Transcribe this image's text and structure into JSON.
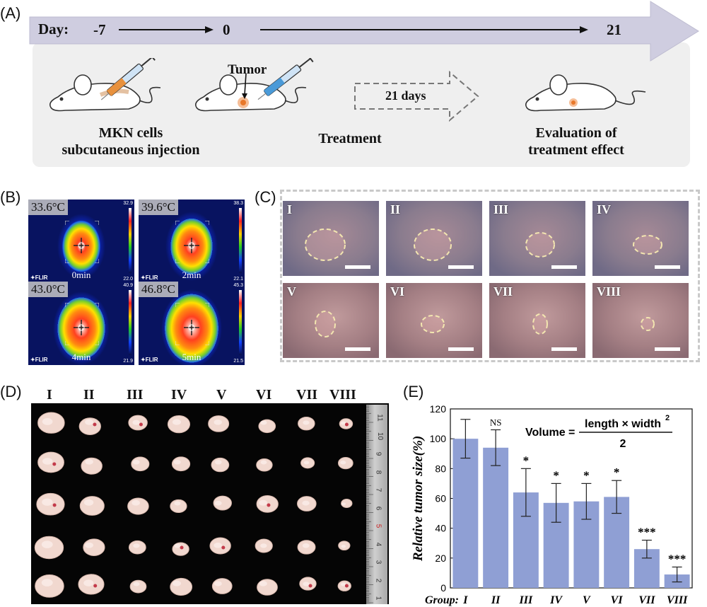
{
  "panel_labels": {
    "a": "(A)",
    "b": "(B)",
    "c": "(C)",
    "d": "(D)",
    "e": "(E)"
  },
  "timeline": {
    "day_label": "Day:",
    "day_start": "-7",
    "day_zero": "0",
    "day_end": "21",
    "tumor_label": "Tumor",
    "interval_label": "21 days",
    "step1_line1": "MKN cells",
    "step1_line2": "subcutaneous injection",
    "step2": "Treatment",
    "step3_line1": "Evaluation of",
    "step3_line2": "treatment effect"
  },
  "thermal_images": [
    {
      "temp": "33.6°C",
      "time": "0min",
      "scale_max": "32.9",
      "scale_min": "22.0"
    },
    {
      "temp": "39.6°C",
      "time": "2min",
      "scale_max": "38.3",
      "scale_min": "22.1"
    },
    {
      "temp": "43.0°C",
      "time": "4min",
      "scale_max": "40.9",
      "scale_min": "21.9"
    },
    {
      "temp": "46.8°C",
      "time": "5min",
      "scale_max": "45.3",
      "scale_min": "21.5"
    }
  ],
  "flir_label": "FLIR",
  "groups": [
    "I",
    "II",
    "III",
    "IV",
    "V",
    "VI",
    "VII",
    "VIII"
  ],
  "ruler_ticks": [
    "1",
    "2",
    "3",
    "4",
    "5",
    "6",
    "7",
    "8",
    "9",
    "10",
    "11"
  ],
  "colors": {
    "bar": "#8f9fd4",
    "timeline_arrow": "#cfcde0",
    "tumor_dot": "#e8782a"
  },
  "chart_data": {
    "type": "bar",
    "categories": [
      "I",
      "II",
      "III",
      "IV",
      "V",
      "VI",
      "VII",
      "VIII"
    ],
    "values": [
      100,
      94,
      64,
      57,
      58,
      61,
      26,
      9
    ],
    "errors": [
      13,
      12,
      16,
      13,
      12,
      11,
      6,
      5
    ],
    "significance": [
      "",
      "NS",
      "*",
      "*",
      "*",
      "*",
      "***",
      "***"
    ],
    "ylabel": "Relative tumor size(%)",
    "xlabel_prefix": "Group:",
    "ylim": [
      0,
      120
    ],
    "yticks": [
      0,
      20,
      40,
      60,
      80,
      100,
      120
    ],
    "formula": {
      "lhs": "Volume =",
      "numerator": "length × width",
      "exponent": "2",
      "denominator": "2"
    }
  }
}
